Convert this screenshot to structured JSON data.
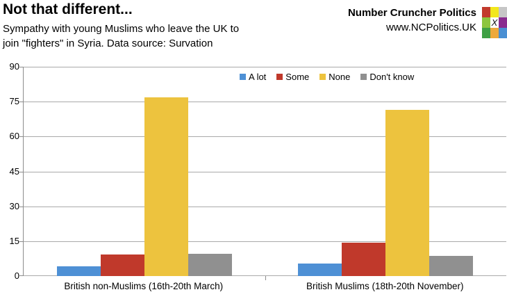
{
  "header": {
    "title": "Not that different...",
    "subtitle_line1": "Sympathy with young Muslims who leave the UK to",
    "subtitle_line2": "join \"fighters\" in Syria. Data source: Survation"
  },
  "brand": {
    "name": "Number Cruncher Politics",
    "url": "www.NCPolitics.UK",
    "logo": {
      "center_glyph": "X",
      "cell_colors": [
        "#c23b2c",
        "#f2e71c",
        "#c6c6c6",
        "#8dc63f",
        "#ffffff",
        "#8a2b8f",
        "#3fa044",
        "#eda93c",
        "#4a8fd3"
      ]
    }
  },
  "chart_data": {
    "type": "bar",
    "title": "Not that different...",
    "subtitle": "Sympathy with young Muslims who leave the UK to join \"fighters\" in Syria. Data source: Survation",
    "categories": [
      "British non-Muslims (16th-20th March)",
      "British Muslims (18th-20th November)"
    ],
    "series": [
      {
        "name": "A lot",
        "color": "#4e90d5",
        "values": [
          4.3,
          5.3
        ]
      },
      {
        "name": "Some",
        "color": "#c0392b",
        "values": [
          9.4,
          14.5
        ]
      },
      {
        "name": "None",
        "color": "#edc33e",
        "values": [
          76.8,
          71.4
        ]
      },
      {
        "name": "Don't know",
        "color": "#909090",
        "values": [
          9.6,
          8.8
        ]
      }
    ],
    "ylim": [
      0,
      90
    ],
    "yticks": [
      0,
      15,
      30,
      45,
      60,
      75,
      90
    ],
    "grid": true,
    "grid_color": "#a9a9a9",
    "axis_color": "#8c8c8c",
    "legend_position": "top-center"
  }
}
